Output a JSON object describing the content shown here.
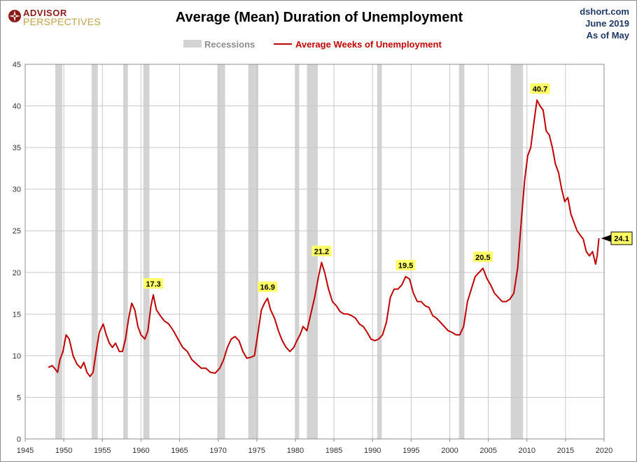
{
  "logo": {
    "line1": "ADVISOR",
    "line2": "PERSPECTIVES"
  },
  "header": {
    "title": "Average (Mean) Duration of Unemployment"
  },
  "source": {
    "site": "dshort.com",
    "date": "June 2019",
    "asof": "As of May"
  },
  "colors": {
    "line": "#c00000",
    "recession": "#d3d3d3",
    "grid": "#c8c8c8",
    "callout": "#ffff66",
    "source_text": "#1f3864"
  },
  "chart_data": {
    "type": "line",
    "title": "Average (Mean) Duration of Unemployment",
    "xlabel": "",
    "ylabel": "",
    "xlim": [
      1945,
      2020
    ],
    "ylim": [
      0,
      45
    ],
    "x_ticks": [
      1945,
      1950,
      1955,
      1960,
      1965,
      1970,
      1975,
      1980,
      1985,
      1990,
      1995,
      2000,
      2005,
      2010,
      2015,
      2020
    ],
    "y_ticks": [
      0,
      5,
      10,
      15,
      20,
      25,
      30,
      35,
      40,
      45
    ],
    "grid": true,
    "legend": {
      "placement": "top-center",
      "entries": [
        "Recessions",
        "Average Weeks of Unemployment"
      ]
    },
    "recessions": [
      [
        1948.9,
        1949.8
      ],
      [
        1953.6,
        1954.4
      ],
      [
        1957.7,
        1958.3
      ],
      [
        1960.3,
        1961.1
      ],
      [
        1969.9,
        1970.9
      ],
      [
        1973.9,
        1975.2
      ],
      [
        1980.0,
        1980.5
      ],
      [
        1981.5,
        1982.9
      ],
      [
        1990.6,
        1991.2
      ],
      [
        2001.2,
        2001.9
      ],
      [
        2007.9,
        2009.5
      ]
    ],
    "series": [
      {
        "name": "Average Weeks of Unemployment",
        "x": [
          1948.0,
          1948.5,
          1948.8,
          1949.2,
          1949.5,
          1949.9,
          1950.3,
          1950.7,
          1951.2,
          1951.7,
          1952.2,
          1952.6,
          1953.0,
          1953.4,
          1953.8,
          1954.2,
          1954.6,
          1955.1,
          1955.5,
          1955.9,
          1956.3,
          1956.7,
          1957.2,
          1957.6,
          1958.0,
          1958.4,
          1958.8,
          1959.2,
          1959.6,
          1960.0,
          1960.5,
          1960.9,
          1961.3,
          1961.6,
          1962.0,
          1962.5,
          1963.0,
          1963.6,
          1964.2,
          1964.8,
          1965.4,
          1966.0,
          1966.6,
          1967.2,
          1967.8,
          1968.4,
          1969.0,
          1969.6,
          1970.2,
          1970.7,
          1971.2,
          1971.7,
          1972.2,
          1972.7,
          1973.2,
          1973.7,
          1974.2,
          1974.7,
          1975.2,
          1975.6,
          1976.0,
          1976.4,
          1976.8,
          1977.3,
          1977.8,
          1978.3,
          1978.8,
          1979.3,
          1979.8,
          1980.2,
          1980.6,
          1981.0,
          1981.5,
          1982.0,
          1982.5,
          1983.0,
          1983.4,
          1983.8,
          1984.3,
          1984.8,
          1985.3,
          1985.8,
          1986.3,
          1986.8,
          1987.3,
          1987.8,
          1988.3,
          1988.8,
          1989.3,
          1989.8,
          1990.3,
          1990.8,
          1991.3,
          1991.8,
          1992.3,
          1992.8,
          1993.3,
          1993.8,
          1994.3,
          1994.8,
          1995.3,
          1995.8,
          1996.3,
          1996.8,
          1997.3,
          1997.8,
          1998.3,
          1998.8,
          1999.3,
          1999.8,
          2000.3,
          2000.8,
          2001.3,
          2001.8,
          2002.3,
          2002.8,
          2003.3,
          2003.8,
          2004.3,
          2004.8,
          2005.3,
          2005.8,
          2006.3,
          2006.8,
          2007.3,
          2007.8,
          2008.3,
          2008.8,
          2009.3,
          2009.7,
          2010.1,
          2010.5,
          2010.9,
          2011.3,
          2011.7,
          2012.1,
          2012.5,
          2012.9,
          2013.3,
          2013.7,
          2014.1,
          2014.5,
          2014.9,
          2015.3,
          2015.7,
          2016.1,
          2016.5,
          2016.9,
          2017.3,
          2017.7,
          2018.1,
          2018.5,
          2018.9,
          2019.1,
          2019.33
        ],
        "values": [
          8.6,
          8.8,
          8.5,
          8.0,
          9.5,
          10.5,
          12.5,
          12.0,
          10.0,
          9.0,
          8.5,
          9.2,
          8.0,
          7.5,
          8.0,
          10.5,
          12.8,
          13.8,
          12.5,
          11.5,
          11.0,
          11.5,
          10.5,
          10.5,
          12.0,
          14.5,
          16.3,
          15.5,
          13.5,
          12.5,
          12.0,
          13.0,
          16.0,
          17.3,
          15.5,
          14.8,
          14.2,
          13.8,
          13.0,
          12.0,
          11.0,
          10.5,
          9.5,
          9.0,
          8.5,
          8.5,
          8.0,
          7.9,
          8.5,
          9.5,
          11.0,
          12.0,
          12.3,
          11.8,
          10.5,
          9.7,
          9.8,
          10.0,
          13.0,
          15.5,
          16.3,
          16.9,
          15.5,
          14.5,
          13.0,
          11.8,
          11.0,
          10.5,
          11.0,
          11.8,
          12.5,
          13.5,
          13.0,
          15.0,
          17.0,
          19.5,
          21.2,
          20.0,
          18.0,
          16.5,
          16.0,
          15.3,
          15.0,
          15.0,
          14.8,
          14.5,
          13.8,
          13.5,
          12.8,
          12.0,
          11.8,
          12.0,
          12.5,
          14.0,
          17.0,
          18.0,
          18.0,
          18.5,
          19.5,
          19.2,
          17.5,
          16.5,
          16.5,
          16.0,
          15.8,
          14.8,
          14.5,
          14.0,
          13.5,
          13.0,
          12.8,
          12.5,
          12.5,
          13.5,
          16.5,
          18.0,
          19.5,
          20.0,
          20.5,
          19.3,
          18.5,
          17.5,
          17.0,
          16.5,
          16.5,
          16.8,
          17.5,
          20.5,
          26.5,
          31.0,
          34.0,
          35.0,
          38.0,
          40.7,
          40.0,
          39.5,
          37.0,
          36.5,
          35.0,
          33.0,
          32.0,
          30.0,
          28.5,
          29.0,
          27.0,
          26.0,
          25.0,
          24.5,
          24.0,
          22.5,
          22.0,
          22.5,
          21.0,
          22.0,
          24.1
        ]
      }
    ],
    "annotations": [
      {
        "x": 1961.6,
        "y": 17.3,
        "text": "17.3"
      },
      {
        "x": 1976.4,
        "y": 16.9,
        "text": "16.9"
      },
      {
        "x": 1983.4,
        "y": 21.2,
        "text": "21.2"
      },
      {
        "x": 1994.3,
        "y": 19.5,
        "text": "19.5"
      },
      {
        "x": 2004.3,
        "y": 20.5,
        "text": "20.5"
      },
      {
        "x": 2011.7,
        "y": 40.7,
        "text": "40.7"
      }
    ],
    "last_value": {
      "x": 2019.33,
      "y": 24.1,
      "text": "24.1"
    }
  }
}
